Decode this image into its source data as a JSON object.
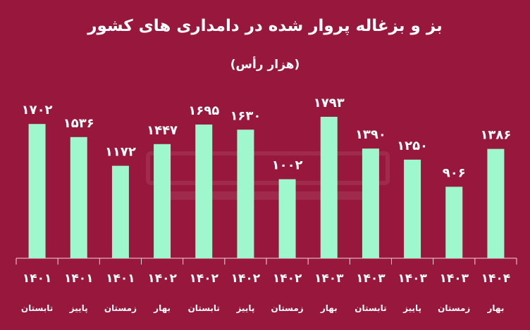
{
  "chart_data": {
    "type": "bar",
    "title": "بز و بزغاله پروار شده در دامداری های کشور",
    "subtitle": "(هزار رأس)",
    "categories": [
      {
        "year": "۱۴۰۱",
        "season": "تابستان"
      },
      {
        "year": "۱۴۰۱",
        "season": "پاییز"
      },
      {
        "year": "۱۴۰۱",
        "season": "زمستان"
      },
      {
        "year": "۱۴۰۲",
        "season": "بهار"
      },
      {
        "year": "۱۴۰۲",
        "season": "تابستان"
      },
      {
        "year": "۱۴۰۲",
        "season": "پاییز"
      },
      {
        "year": "۱۴۰۲",
        "season": "زمستان"
      },
      {
        "year": "۱۴۰۳",
        "season": "بهار"
      },
      {
        "year": "۱۴۰۳",
        "season": "تابستان"
      },
      {
        "year": "۱۴۰۳",
        "season": "پاییز"
      },
      {
        "year": "۱۴۰۳",
        "season": "زمستان"
      },
      {
        "year": "۱۴۰۴",
        "season": "بهار"
      }
    ],
    "values": [
      1702,
      1536,
      1172,
      1447,
      1695,
      1630,
      1002,
      1793,
      1390,
      1250,
      906,
      1386
    ],
    "value_labels": [
      "۱۷۰۲",
      "۱۵۳۶",
      "۱۱۷۲",
      "۱۴۴۷",
      "۱۶۹۵",
      "۱۶۳۰",
      "۱۰۰۲",
      "۱۷۹۳",
      "۱۳۹۰",
      "۱۲۵۰",
      "۹۰۶",
      "۱۳۸۶"
    ],
    "ylim": [
      0,
      1793
    ],
    "grid": false,
    "colors": {
      "background": "#98173c",
      "bar": "#9ff7cd",
      "text": "#ffffff",
      "axis": "#f2d6de"
    }
  }
}
